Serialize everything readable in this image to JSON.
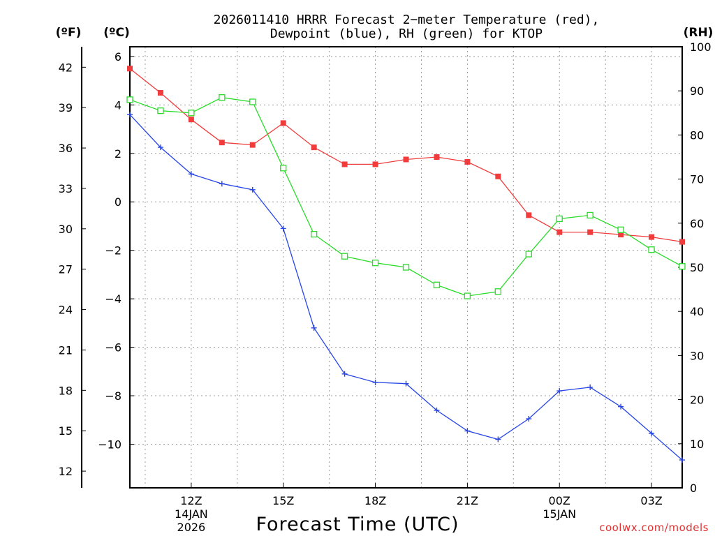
{
  "chart_data": {
    "type": "line",
    "title_line1": "2026011410 HRRR Forecast 2−meter Temperature (red),",
    "title_line2": "Dewpoint (blue), RH (green) for KTOP",
    "xlabel": "Forecast Time (UTC)",
    "credit": "coolwx.com/models",
    "unit_f": "(ºF)",
    "unit_c": "(ºC)",
    "unit_rh": "(RH)",
    "x_hours": [
      10,
      11,
      12,
      13,
      14,
      15,
      16,
      17,
      18,
      19,
      20,
      21,
      22,
      23,
      24,
      25,
      26,
      27,
      28
    ],
    "x_range": [
      10,
      28
    ],
    "celsius_range": [
      -11.8,
      6.4
    ],
    "rh_range": [
      0,
      100
    ],
    "x_ticks": [
      {
        "hour": 12,
        "label": "12Z",
        "sub1": "14JAN",
        "sub2": "2026"
      },
      {
        "hour": 15,
        "label": "15Z",
        "sub1": "",
        "sub2": ""
      },
      {
        "hour": 18,
        "label": "18Z",
        "sub1": "",
        "sub2": ""
      },
      {
        "hour": 21,
        "label": "21Z",
        "sub1": "",
        "sub2": ""
      },
      {
        "hour": 24,
        "label": "00Z",
        "sub1": "15JAN",
        "sub2": ""
      },
      {
        "hour": 27,
        "label": "03Z",
        "sub1": "",
        "sub2": ""
      }
    ],
    "celsius_ticks": [
      6,
      4,
      2,
      0,
      -2,
      -4,
      -6,
      -8,
      -10
    ],
    "celsius_tick_labels": [
      "6",
      "4",
      "2",
      "0",
      "−2",
      "−4",
      "−6",
      "−8",
      "−10"
    ],
    "fahrenheit_ticks": [
      42,
      39,
      36,
      33,
      30,
      27,
      24,
      21,
      18,
      15,
      12
    ],
    "fahrenheit_tick_labels": [
      "42",
      "39",
      "36",
      "33",
      "30",
      "27",
      "24",
      "21",
      "18",
      "15",
      "12"
    ],
    "rh_ticks": [
      100,
      90,
      80,
      70,
      60,
      50,
      40,
      30,
      20,
      10,
      0
    ],
    "rh_tick_labels": [
      "100",
      "90",
      "80",
      "70",
      "60",
      "50",
      "40",
      "30",
      "20",
      "10",
      "0"
    ],
    "series": [
      {
        "name": "Temperature",
        "axis": "celsius",
        "color": "#f03c3c",
        "marker": "filled-square",
        "values": [
          5.5,
          4.5,
          3.4,
          2.45,
          2.35,
          3.25,
          2.25,
          1.55,
          1.55,
          1.75,
          1.85,
          1.65,
          1.05,
          -0.55,
          -1.25,
          -1.25,
          -1.35,
          -1.45,
          -1.65
        ]
      },
      {
        "name": "Dewpoint",
        "axis": "celsius",
        "color": "#2846e6",
        "marker": "plus",
        "values": [
          3.6,
          2.25,
          1.15,
          0.75,
          0.5,
          -1.1,
          -5.2,
          -7.1,
          -7.45,
          -7.5,
          -8.6,
          -9.45,
          -9.8,
          -8.95,
          -7.8,
          -7.65,
          -8.45,
          -9.55,
          -10.65
        ]
      },
      {
        "name": "Relative Humidity",
        "axis": "rh",
        "color": "#28dc28",
        "marker": "open-square",
        "values": [
          88,
          85.5,
          85,
          88.5,
          87.5,
          72.5,
          57.5,
          52.5,
          51,
          50,
          46,
          43.5,
          44.5,
          53,
          61,
          61.8,
          58.5,
          54,
          50.2
        ]
      }
    ],
    "grid": true
  }
}
